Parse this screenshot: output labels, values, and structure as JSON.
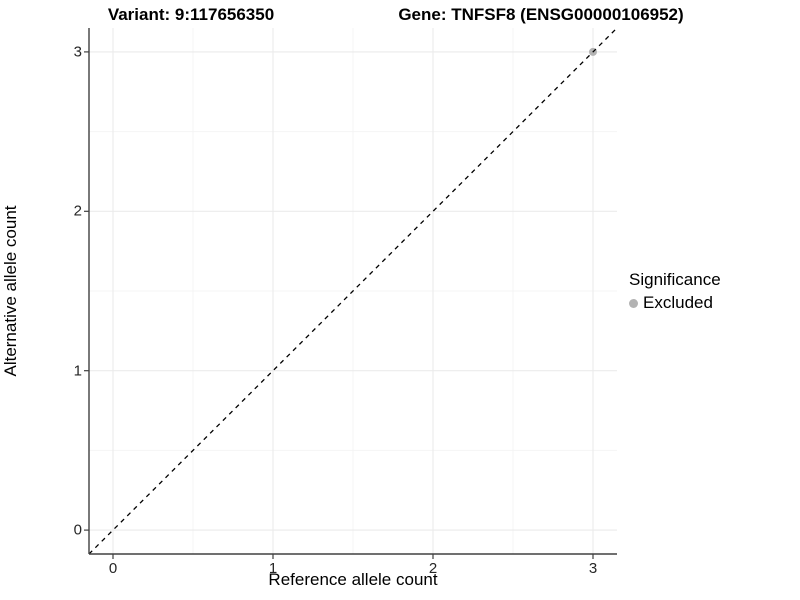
{
  "header": {
    "variant_title": "Variant: 9:117656350",
    "gene_title": "Gene: TNFSF8 (ENSG00000106952)"
  },
  "legend": {
    "title": "Significance",
    "items": [
      {
        "label": "Excluded",
        "color": "#b3b3b3"
      }
    ]
  },
  "colors": {
    "background": "#ffffff",
    "grid_major": "#ebebeb",
    "grid_minor": "#f4f4f4",
    "axis_line": "#404040",
    "tick_mark": "#404040",
    "identity_line": "#000000",
    "excluded_point": "#b3b3b3"
  },
  "chart_data": {
    "type": "scatter",
    "title": "Variant: 9:117656350 | Gene: TNFSF8 (ENSG00000106952)",
    "xlabel": "Reference allele count",
    "ylabel": "Alternative allele count",
    "xlim": [
      -0.15,
      3.15
    ],
    "ylim": [
      -0.15,
      3.15
    ],
    "x_ticks": [
      0,
      1,
      2,
      3
    ],
    "y_ticks": [
      0,
      1,
      2,
      3
    ],
    "x_minor_ticks": [
      0.5,
      1.5,
      2.5
    ],
    "y_minor_ticks": [
      0.5,
      1.5,
      2.5
    ],
    "grid": true,
    "legend_position": "right",
    "series": [
      {
        "name": "Excluded",
        "color": "#b3b3b3",
        "points": [
          {
            "x": 3,
            "y": 3
          }
        ]
      }
    ],
    "reference_line": {
      "kind": "identity",
      "style": "dashed",
      "from": {
        "x": -0.15,
        "y": -0.15
      },
      "to": {
        "x": 3.15,
        "y": 3.15
      }
    }
  }
}
